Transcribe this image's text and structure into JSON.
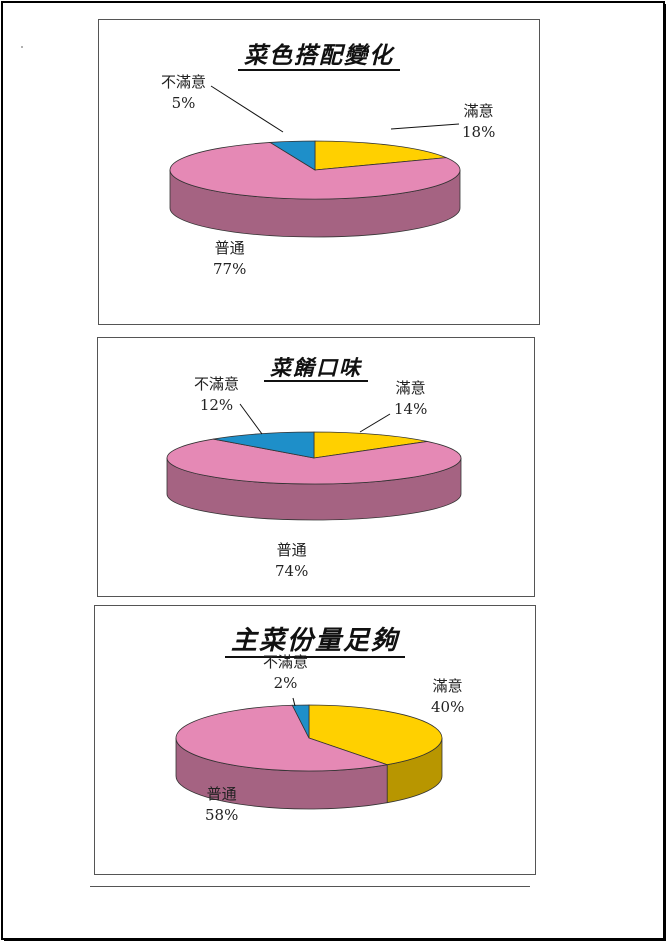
{
  "chart_data": [
    {
      "type": "pie",
      "title": "菜色搭配變化",
      "slices": [
        {
          "label": "滿意",
          "value": 18,
          "value_label": "18%",
          "color": "#FFD000"
        },
        {
          "label": "普通",
          "value": 77,
          "value_label": "77%",
          "color": "#E589B5"
        },
        {
          "label": "不滿意",
          "value": 5,
          "value_label": "5%",
          "color": "#1E8FC9"
        }
      ]
    },
    {
      "type": "pie",
      "title": "菜餚口味",
      "slices": [
        {
          "label": "滿意",
          "value": 14,
          "value_label": "14%",
          "color": "#FFD000"
        },
        {
          "label": "普通",
          "value": 74,
          "value_label": "74%",
          "color": "#E589B5"
        },
        {
          "label": "不滿意",
          "value": 12,
          "value_label": "12%",
          "color": "#1E8FC9"
        }
      ]
    },
    {
      "type": "pie",
      "title": "主菜份量足夠",
      "slices": [
        {
          "label": "滿意",
          "value": 40,
          "value_label": "40%",
          "color": "#FFD000"
        },
        {
          "label": "普通",
          "value": 58,
          "value_label": "58%",
          "color": "#E589B5"
        },
        {
          "label": "不滿意",
          "value": 2,
          "value_label": "2%",
          "color": "#1E8FC9"
        }
      ]
    }
  ]
}
